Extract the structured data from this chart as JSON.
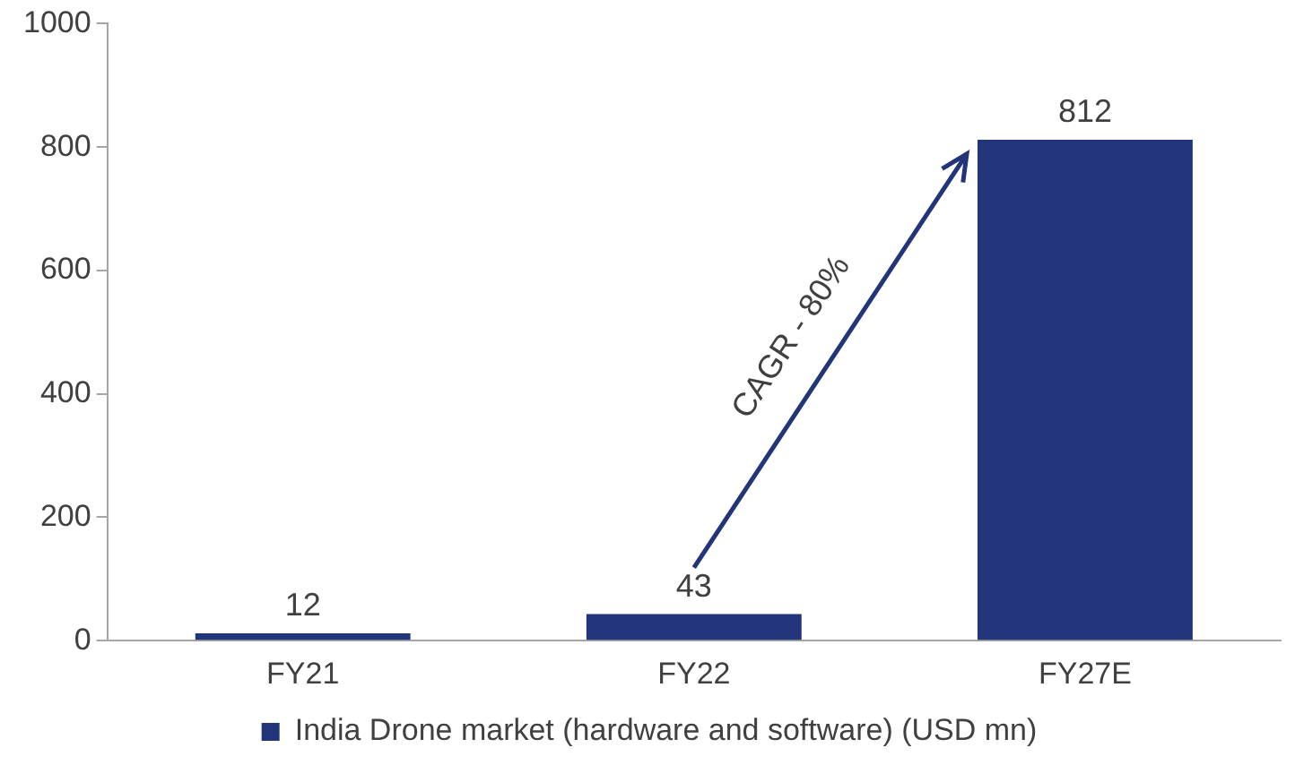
{
  "chart_data": {
    "type": "bar",
    "categories": [
      "FY21",
      "FY22",
      "FY27E"
    ],
    "series": [
      {
        "name": "India Drone market (hardware and software) (USD mn)",
        "color": "#22347a",
        "values": [
          12,
          43,
          812
        ]
      }
    ],
    "ylim": [
      0,
      1000
    ],
    "yticks": [
      0,
      200,
      400,
      600,
      800,
      1000
    ],
    "grid": false,
    "legend": "bottom",
    "data_labels": true,
    "annotations": [
      "CAGR - 80%"
    ]
  }
}
